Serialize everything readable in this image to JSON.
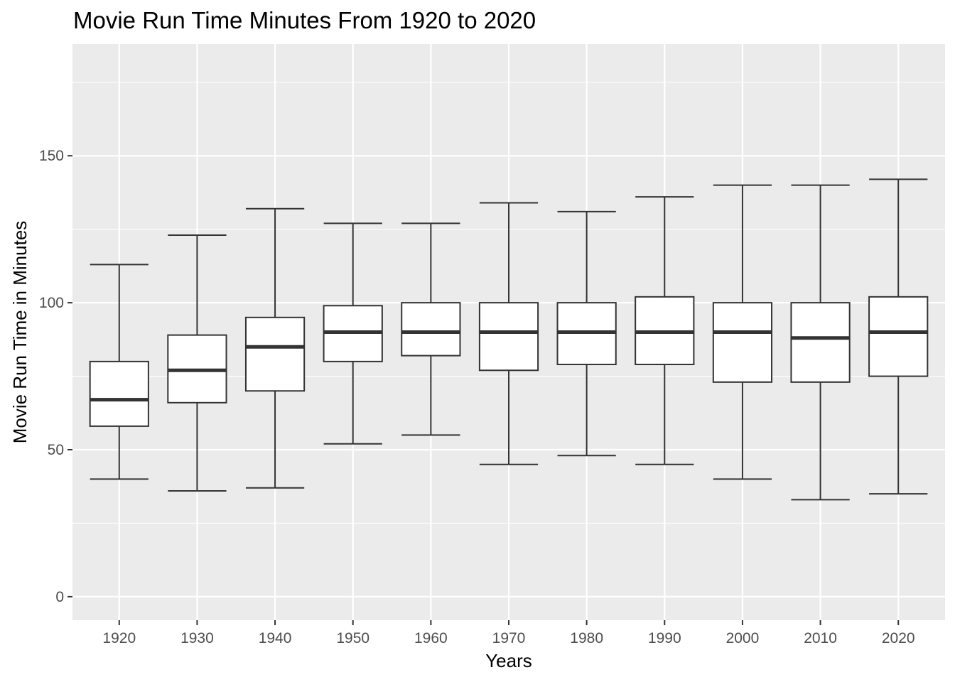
{
  "chart_data": {
    "type": "boxplot",
    "title": "Movie Run Time Minutes From 1920 to 2020",
    "xlabel": "Years",
    "ylabel": "Movie Run Time in Minutes",
    "categories": [
      "1920",
      "1930",
      "1940",
      "1950",
      "1960",
      "1970",
      "1980",
      "1990",
      "2000",
      "2010",
      "2020"
    ],
    "yticks": [
      "0",
      "50",
      "100",
      "150"
    ],
    "ylim": [
      -8,
      188
    ],
    "grid": true,
    "legend": "none",
    "colors": {
      "panel": "#EBEBEB",
      "grid": "#FFFFFF",
      "box_fill": "#FFFFFF",
      "box_line": "#333333",
      "tick_text": "#4D4D4D"
    },
    "boxes": [
      {
        "x": "1920",
        "lower_whisker": 40,
        "q1": 58,
        "median": 67,
        "q3": 80,
        "upper_whisker": 113
      },
      {
        "x": "1930",
        "lower_whisker": 36,
        "q1": 66,
        "median": 77,
        "q3": 89,
        "upper_whisker": 123
      },
      {
        "x": "1940",
        "lower_whisker": 37,
        "q1": 70,
        "median": 85,
        "q3": 95,
        "upper_whisker": 132
      },
      {
        "x": "1950",
        "lower_whisker": 52,
        "q1": 80,
        "median": 90,
        "q3": 99,
        "upper_whisker": 127
      },
      {
        "x": "1960",
        "lower_whisker": 55,
        "q1": 82,
        "median": 90,
        "q3": 100,
        "upper_whisker": 127
      },
      {
        "x": "1970",
        "lower_whisker": 45,
        "q1": 77,
        "median": 90,
        "q3": 100,
        "upper_whisker": 134
      },
      {
        "x": "1980",
        "lower_whisker": 48,
        "q1": 79,
        "median": 90,
        "q3": 100,
        "upper_whisker": 131
      },
      {
        "x": "1990",
        "lower_whisker": 45,
        "q1": 79,
        "median": 90,
        "q3": 102,
        "upper_whisker": 136
      },
      {
        "x": "2000",
        "lower_whisker": 40,
        "q1": 73,
        "median": 90,
        "q3": 100,
        "upper_whisker": 140
      },
      {
        "x": "2010",
        "lower_whisker": 33,
        "q1": 73,
        "median": 88,
        "q3": 100,
        "upper_whisker": 140
      },
      {
        "x": "2020",
        "lower_whisker": 35,
        "q1": 75,
        "median": 90,
        "q3": 102,
        "upper_whisker": 142
      }
    ]
  }
}
